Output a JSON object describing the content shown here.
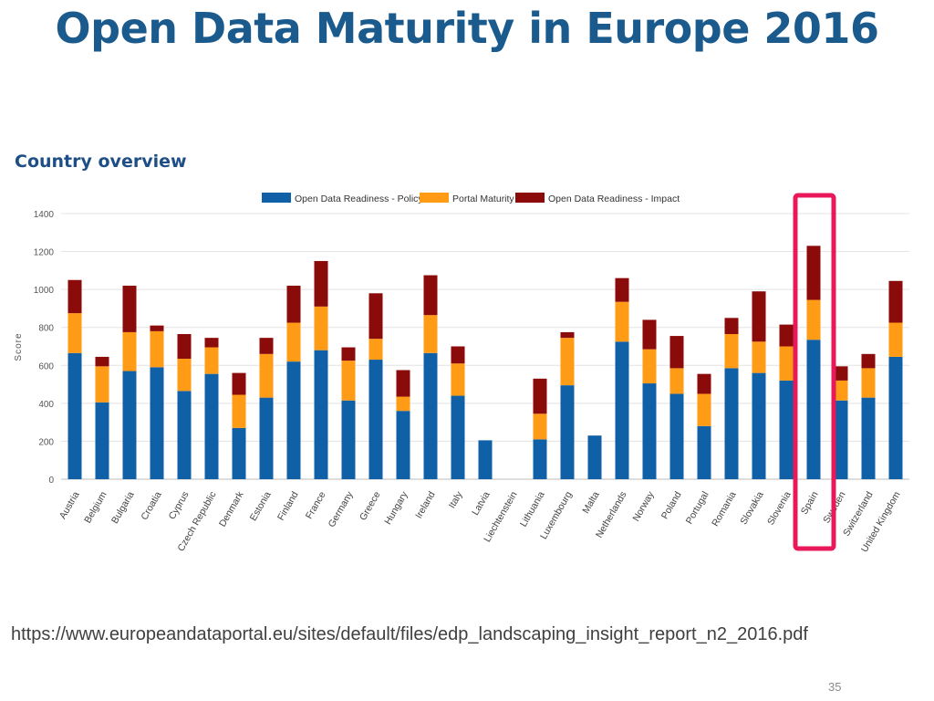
{
  "slide": {
    "title": "Open Data Maturity in Europe 2016",
    "source_url": "https://www.europeandataportal.eu/sites/default/files/edp_landscaping_insight_report_n2_2016.pdf",
    "page_number": "35"
  },
  "chart_data": {
    "type": "bar",
    "stacked": true,
    "title": "Country overview",
    "xlabel": "",
    "ylabel": "Score",
    "ylim": [
      0,
      1400
    ],
    "yticks": [
      0,
      200,
      400,
      600,
      800,
      1000,
      1200,
      1400
    ],
    "grid": true,
    "legend_position": "top",
    "categories": [
      "Austria",
      "Belgium",
      "Bulgaria",
      "Croatia",
      "Cyprus",
      "Czech Republic",
      "Denmark",
      "Estonia",
      "Finland",
      "France",
      "Germany",
      "Greece",
      "Hungary",
      "Ireland",
      "Italy",
      "Latvia",
      "Liechtenstein",
      "Lithuania",
      "Luxembourg",
      "Malta",
      "Netherlands",
      "Norway",
      "Poland",
      "Portugal",
      "Romania",
      "Slovakia",
      "Slovenia",
      "Spain",
      "Sweden",
      "Switzerland",
      "United Kingdom"
    ],
    "series": [
      {
        "name": "Open Data Readiness - Policy",
        "color": "#1060a8",
        "values": [
          665,
          405,
          570,
          590,
          465,
          555,
          270,
          430,
          620,
          680,
          415,
          630,
          360,
          665,
          440,
          205,
          0,
          210,
          495,
          230,
          725,
          505,
          450,
          280,
          585,
          560,
          520,
          735,
          415,
          430,
          645
        ]
      },
      {
        "name": "Portal Maturity",
        "color": "#ff9b14",
        "values": [
          210,
          190,
          205,
          190,
          170,
          140,
          175,
          230,
          205,
          230,
          210,
          110,
          75,
          200,
          170,
          0,
          0,
          135,
          250,
          0,
          210,
          180,
          135,
          170,
          180,
          165,
          180,
          210,
          105,
          155,
          180
        ]
      },
      {
        "name": "Open Data Readiness - Impact",
        "color": "#8b0a0a",
        "values": [
          175,
          50,
          245,
          30,
          130,
          50,
          115,
          85,
          195,
          240,
          70,
          240,
          140,
          210,
          90,
          0,
          0,
          185,
          30,
          0,
          125,
          155,
          170,
          105,
          85,
          265,
          115,
          285,
          75,
          75,
          220
        ]
      }
    ],
    "highlight": {
      "category": "Spain",
      "color": "#e8185a"
    }
  }
}
